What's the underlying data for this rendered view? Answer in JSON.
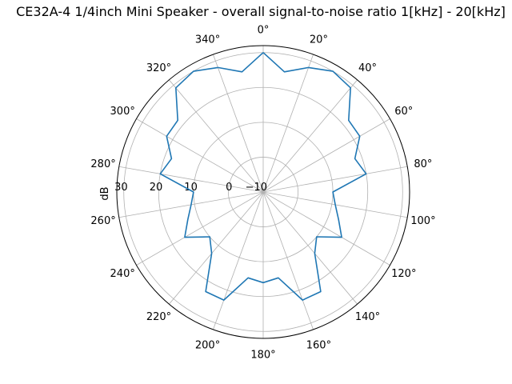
{
  "chart_data": {
    "type": "line",
    "projection": "polar",
    "title": "CE32A-4 1/4inch Mini Speaker - overall signal-to-noise ratio 1[kHz] - 20[kHz]",
    "ylabel": "dB",
    "theta_zero": "top",
    "theta_direction": "clockwise",
    "angle_tick_labels": [
      "0°",
      "20°",
      "40°",
      "60°",
      "80°",
      "100°",
      "120°",
      "140°",
      "160°",
      "180°",
      "200°",
      "220°",
      "240°",
      "260°",
      "280°",
      "300°",
      "320°",
      "340°"
    ],
    "radial_ticks": [
      -10,
      0,
      10,
      20,
      30
    ],
    "radial_tick_labels": [
      "−10",
      "0",
      "10",
      "20",
      "30"
    ],
    "rlim": [
      -10,
      32
    ],
    "grid": true,
    "series": [
      {
        "color": "#1f77b4",
        "angles_deg": [
          0,
          10,
          20,
          30,
          40,
          50,
          60,
          70,
          80,
          90,
          100,
          110,
          120,
          130,
          140,
          150,
          160,
          170,
          180,
          190,
          200,
          210,
          220,
          230,
          240,
          250,
          260,
          270,
          280,
          290,
          300,
          310,
          320,
          330,
          340,
          350,
          360
        ],
        "values_db": [
          30,
          25,
          28,
          30,
          29,
          22,
          22,
          18,
          20,
          10,
          11,
          13,
          16,
          10,
          13,
          23,
          23,
          15,
          16,
          15,
          23,
          23,
          13,
          10,
          16,
          13,
          11,
          10,
          20,
          18,
          22,
          22,
          29,
          30,
          28,
          25,
          30
        ]
      }
    ]
  }
}
